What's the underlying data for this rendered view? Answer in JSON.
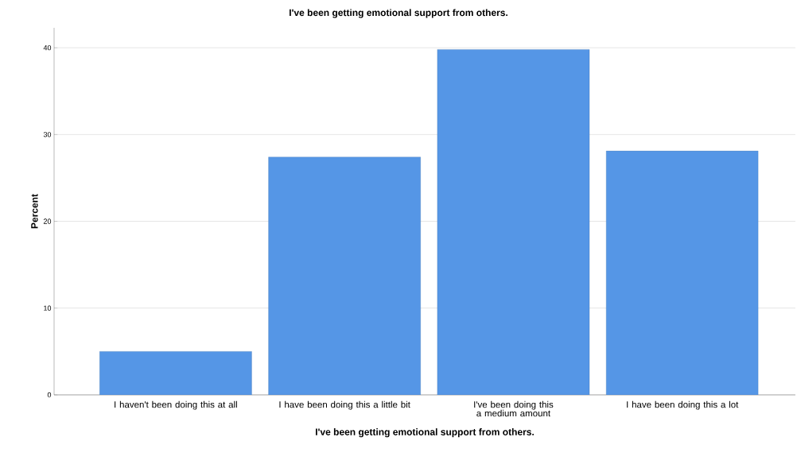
{
  "chart_data": {
    "type": "bar",
    "title": "I've been getting emotional support from others.",
    "xlabel": "I've been getting emotional support from others.",
    "ylabel": "Percent",
    "categories": [
      "I haven't been doing this at all",
      "I have been doing this a little bit",
      "I've been doing this a medium amount",
      "I have been doing this a lot"
    ],
    "values": [
      5.0,
      27.4,
      39.8,
      28.1
    ],
    "color": "#5596e6",
    "ylim": [
      0,
      42.3
    ],
    "yticks": [
      0,
      10,
      20,
      30,
      40
    ],
    "grid": "y"
  }
}
